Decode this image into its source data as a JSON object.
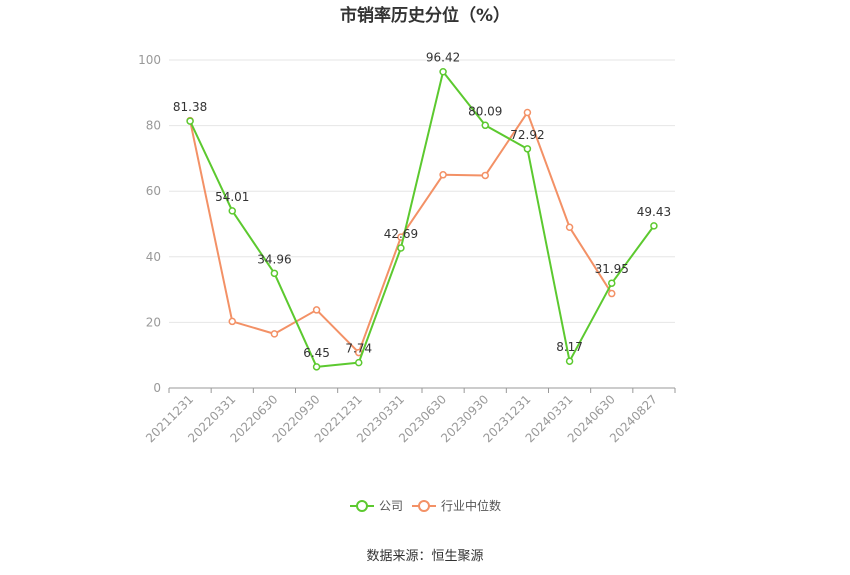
{
  "chart_data": {
    "type": "line",
    "title": "市销率历史分位（%）",
    "categories": [
      "20211231",
      "20220331",
      "20220630",
      "20220930",
      "20221231",
      "20230331",
      "20230630",
      "20230930",
      "20231231",
      "20240331",
      "20240630",
      "20240827"
    ],
    "ylim": [
      0,
      100
    ],
    "yticks": [
      "0",
      "20",
      "40",
      "60",
      "80",
      "100"
    ],
    "grid": true,
    "legend_position": "bottom",
    "series": [
      {
        "name": "公司",
        "color": "#5cc92f",
        "values": [
          81.38,
          54.01,
          34.96,
          6.45,
          7.74,
          42.69,
          96.42,
          80.09,
          72.92,
          8.17,
          31.95,
          49.43
        ],
        "labels": [
          "81.38",
          "54.01",
          "34.96",
          "6.45",
          "7.74",
          "42.69",
          "96.42",
          "80.09",
          "72.92",
          "8.17",
          "31.95",
          "49.43"
        ]
      },
      {
        "name": "行业中位数",
        "color": "#f39166",
        "values": [
          81.5,
          20.3,
          16.5,
          23.8,
          10.8,
          46.0,
          65.0,
          64.8,
          84.0,
          49.0,
          28.8,
          null
        ]
      }
    ]
  },
  "source_text": "数据来源：恒生聚源"
}
